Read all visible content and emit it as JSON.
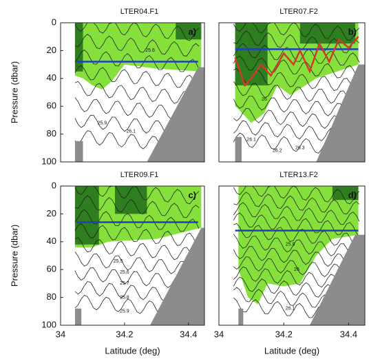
{
  "chart_data": [
    {
      "type": "contour",
      "title": "LTER04.F1",
      "panel_label": "a)",
      "y_label": "Pressure (dbar)",
      "xlim": [
        34,
        34.45
      ],
      "ylim": [
        100,
        0
      ],
      "yticks": [
        0,
        20,
        40,
        60,
        80,
        100
      ],
      "contour_labels": [
        25.6,
        25.9,
        26.1
      ],
      "lines": [
        {
          "color": "#1f3fbf",
          "x": [
            34.05,
            34.43
          ],
          "y": [
            28,
            28
          ]
        }
      ]
    },
    {
      "type": "contour",
      "title": "LTER07.F2",
      "panel_label": "b)",
      "xlim": [
        34,
        34.45
      ],
      "ylim": [
        100,
        0
      ],
      "contour_labels": [
        26,
        26.1,
        26.2,
        26.3
      ],
      "lines": [
        {
          "color": "#1f3fbf",
          "x": [
            34.05,
            34.43
          ],
          "y": [
            19,
            19
          ]
        },
        {
          "color": "#d03a2a",
          "x": [
            34.05,
            34.08,
            34.1,
            34.13,
            34.16,
            34.2,
            34.23,
            34.25,
            34.28,
            34.31,
            34.34,
            34.37,
            34.4,
            34.43
          ],
          "y": [
            25,
            45,
            40,
            30,
            38,
            22,
            30,
            20,
            35,
            15,
            28,
            12,
            18,
            10
          ]
        }
      ]
    },
    {
      "type": "contour",
      "title": "LTER09.F1",
      "panel_label": "c)",
      "y_label": "Pressure (dbar)",
      "x_label": "Latitude (deg)",
      "xlim": [
        34,
        34.45
      ],
      "ylim": [
        100,
        0
      ],
      "yticks": [
        0,
        20,
        40,
        60,
        80,
        100
      ],
      "xticks": [
        34,
        34.2,
        34.4
      ],
      "contour_labels": [
        25.5,
        25.6,
        25.7,
        25.8,
        25.9
      ],
      "lines": [
        {
          "color": "#1f3fbf",
          "x": [
            34.05,
            34.43
          ],
          "y": [
            26,
            26
          ]
        }
      ]
    },
    {
      "type": "contour",
      "title": "LTER13.F2",
      "panel_label": "d)",
      "x_label": "Latitude (deg)",
      "xlim": [
        34,
        34.45
      ],
      "ylim": [
        100,
        0
      ],
      "xticks": [
        34,
        34.2,
        34.4
      ],
      "contour_labels": [
        25.9,
        26,
        26.1
      ],
      "lines": [
        {
          "color": "#1f3fbf",
          "x": [
            34.05,
            34.43
          ],
          "y": [
            32,
            32
          ]
        }
      ]
    }
  ]
}
